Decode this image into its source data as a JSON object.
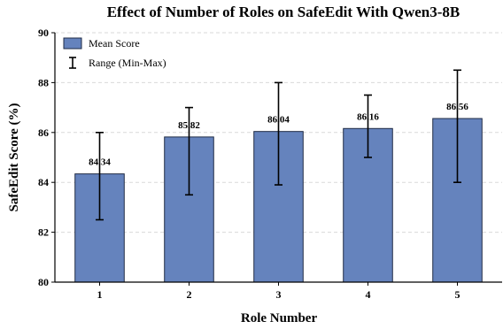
{
  "chart_data": {
    "type": "bar",
    "title": "Effect of Number of Roles on SafeEdit With Qwen3-8B",
    "xlabel": "Role Number",
    "ylabel": "SafeEdit Score (%)",
    "categories": [
      "1",
      "2",
      "3",
      "4",
      "5"
    ],
    "series": [
      {
        "name": "Mean Score",
        "values": [
          84.34,
          85.82,
          86.04,
          86.16,
          86.56
        ],
        "labels": [
          "84.34",
          "85.82",
          "86.04",
          "86.16",
          "86.56"
        ]
      }
    ],
    "error_range": {
      "name": "Range (Min-Max)",
      "min": [
        82.5,
        83.5,
        83.9,
        85.0,
        84.0
      ],
      "max": [
        86.0,
        87.0,
        88.0,
        87.5,
        88.5
      ]
    },
    "ylim": [
      80,
      90
    ],
    "yticks": [
      "80",
      "82",
      "84",
      "86",
      "88",
      "90"
    ],
    "grid": true,
    "legend_position": "top-left",
    "colors": {
      "bar_fill": "#6583BD",
      "bar_edge": "#1F2B45",
      "error_bar": "#000000",
      "grid": "#D9D9D9"
    }
  }
}
